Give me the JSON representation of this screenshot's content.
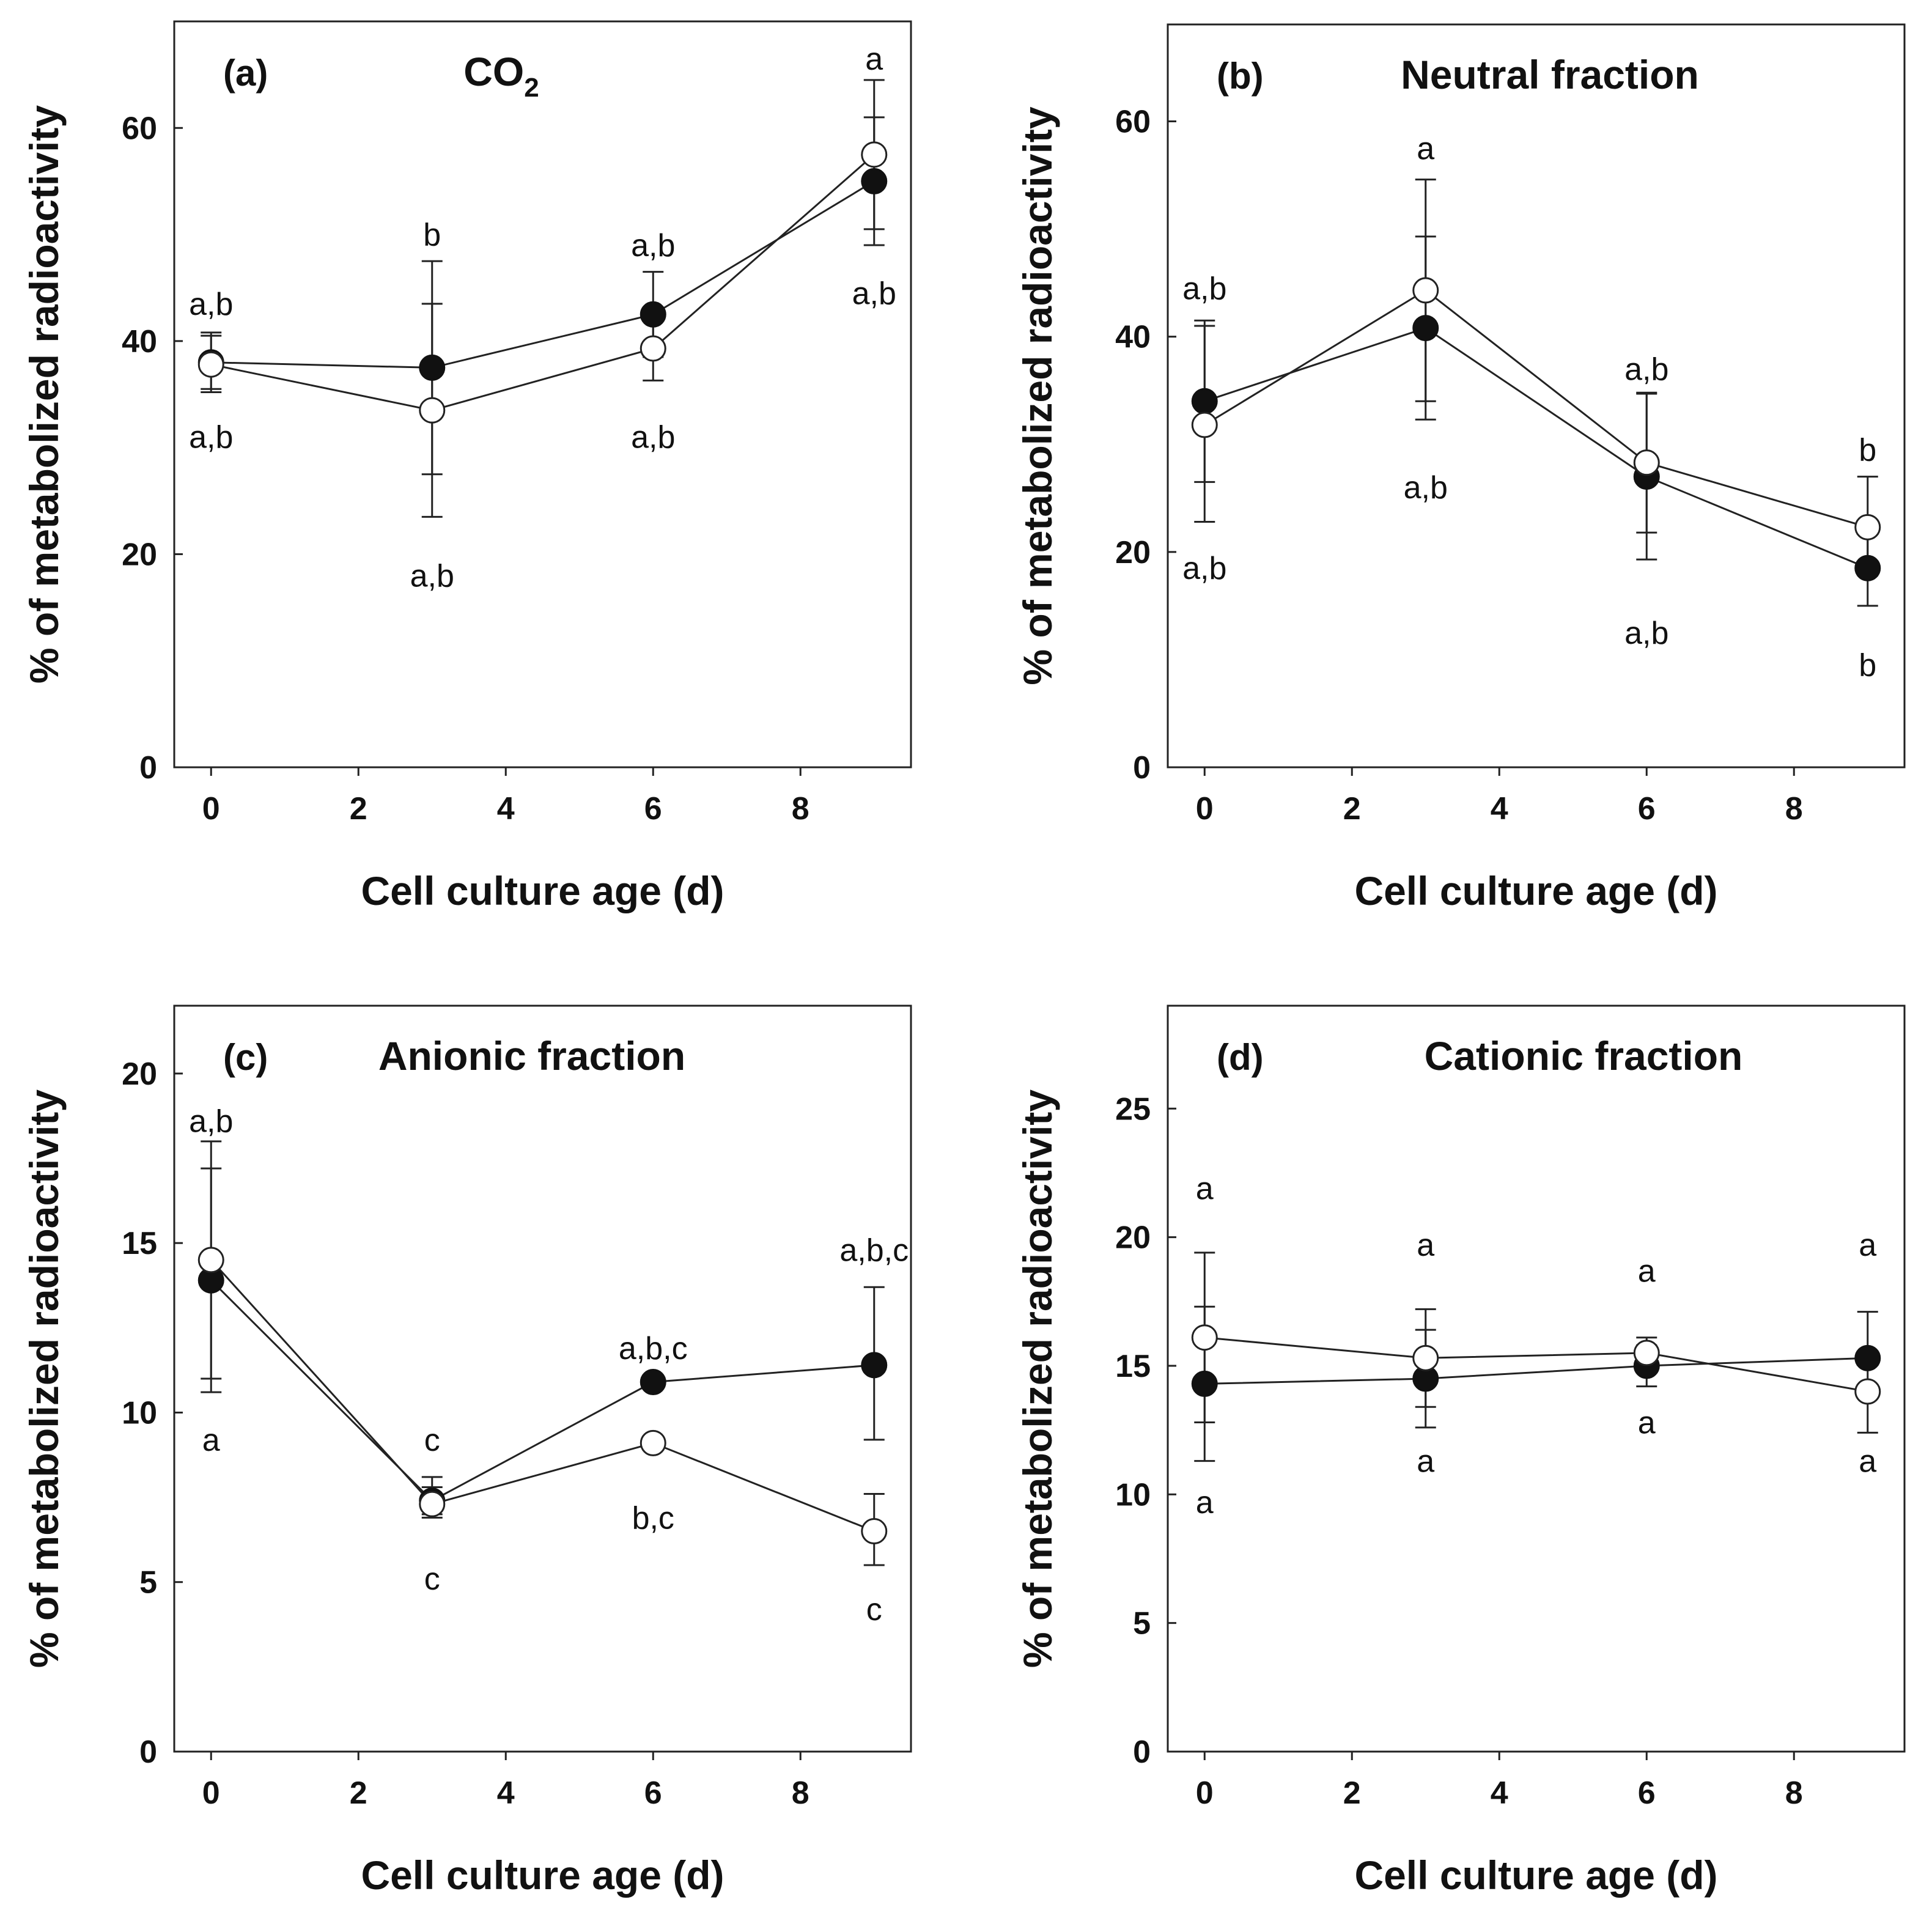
{
  "chart_data": [
    {
      "type": "line",
      "panel": "(a)",
      "title": "CO2",
      "title_main": "CO",
      "title_sub": "2",
      "xlabel": "Cell culture age (d)",
      "ylabel": "% of metabolized radioactivity",
      "xlim": [
        -0.5,
        9.5
      ],
      "ylim": [
        0,
        70
      ],
      "xticks": [
        0,
        2,
        4,
        6,
        8
      ],
      "yticks": [
        0,
        20,
        40,
        60
      ],
      "x": [
        0,
        3,
        6,
        9
      ],
      "series": [
        {
          "name": "filled",
          "marker": "filled",
          "values": [
            38,
            37.5,
            42.5,
            55
          ],
          "err_low": [
            35.5,
            27.5,
            38.5,
            49
          ],
          "err_high": [
            40.5,
            47.5,
            46.5,
            61
          ]
        },
        {
          "name": "open",
          "marker": "open",
          "values": [
            37.8,
            33.5,
            39.3,
            57.5
          ],
          "err_low": [
            35.2,
            23.5,
            36.3,
            50.5
          ],
          "err_high": [
            40.8,
            43.5,
            42.3,
            64.5
          ]
        }
      ],
      "annotations": [
        {
          "x": 0,
          "y": 43.5,
          "text": "a,b"
        },
        {
          "x": 0,
          "y": 31,
          "text": "a,b"
        },
        {
          "x": 3,
          "y": 50,
          "text": "b"
        },
        {
          "x": 3,
          "y": 18,
          "text": "a,b"
        },
        {
          "x": 6,
          "y": 49,
          "text": "a,b"
        },
        {
          "x": 6,
          "y": 31,
          "text": "a,b"
        },
        {
          "x": 9,
          "y": 66.5,
          "text": "a"
        },
        {
          "x": 9,
          "y": 44.5,
          "text": "a,b"
        }
      ]
    },
    {
      "type": "line",
      "panel": "(b)",
      "title": "Neutral fraction",
      "xlabel": "Cell culture age (d)",
      "ylabel": "% of metabolized radioactivity",
      "xlim": [
        -0.5,
        9.5
      ],
      "ylim": [
        0,
        69
      ],
      "xticks": [
        0,
        2,
        4,
        6,
        8
      ],
      "yticks": [
        0,
        20,
        40,
        60
      ],
      "x": [
        0,
        3,
        6,
        9
      ],
      "series": [
        {
          "name": "filled",
          "marker": "filled",
          "values": [
            34,
            40.8,
            27,
            18.5
          ],
          "err_low": [
            26.5,
            32.3,
            19.3,
            15
          ],
          "err_high": [
            41.5,
            49.3,
            34.7,
            22
          ]
        },
        {
          "name": "open",
          "marker": "open",
          "values": [
            31.8,
            44.3,
            28.3,
            22.3
          ],
          "err_low": [
            22.8,
            34,
            21.8,
            17.8
          ],
          "err_high": [
            41,
            54.6,
            34.8,
            27
          ]
        }
      ],
      "annotations": [
        {
          "x": 0,
          "y": 44.5,
          "text": "a,b"
        },
        {
          "x": 0,
          "y": 18.5,
          "text": "a,b"
        },
        {
          "x": 3,
          "y": 57.5,
          "text": "a"
        },
        {
          "x": 3,
          "y": 26,
          "text": "a,b"
        },
        {
          "x": 6,
          "y": 37,
          "text": "a,b"
        },
        {
          "x": 6,
          "y": 12.5,
          "text": "a,b"
        },
        {
          "x": 9,
          "y": 29.5,
          "text": "b"
        },
        {
          "x": 9,
          "y": 9.5,
          "text": "b"
        }
      ]
    },
    {
      "type": "line",
      "panel": "(c)",
      "title": "Anionic fraction",
      "xlabel": "Cell culture age (d)",
      "ylabel": "% of metabolized radioactivity",
      "xlim": [
        -0.5,
        9.5
      ],
      "ylim": [
        0,
        22
      ],
      "xticks": [
        0,
        2,
        4,
        6,
        8
      ],
      "yticks": [
        0,
        5,
        10,
        15,
        20
      ],
      "x": [
        0,
        3,
        6,
        9
      ],
      "series": [
        {
          "name": "filled",
          "marker": "filled",
          "values": [
            13.9,
            7.4,
            10.9,
            11.4
          ],
          "err_low": [
            10.6,
            7,
            10.9,
            9.2
          ],
          "err_high": [
            17.2,
            7.8,
            10.9,
            13.7
          ]
        },
        {
          "name": "open",
          "marker": "open",
          "values": [
            14.5,
            7.3,
            9.1,
            6.5
          ],
          "err_low": [
            11,
            6.9,
            9.1,
            5.5
          ],
          "err_high": [
            18,
            8.1,
            9.1,
            7.6
          ]
        }
      ],
      "annotations": [
        {
          "x": 0,
          "y": 18.6,
          "text": "a,b"
        },
        {
          "x": 0,
          "y": 9.2,
          "text": "a"
        },
        {
          "x": 3,
          "y": 9.2,
          "text": "c"
        },
        {
          "x": 3,
          "y": 5.1,
          "text": "c"
        },
        {
          "x": 6,
          "y": 11.9,
          "text": "a,b,c"
        },
        {
          "x": 6,
          "y": 6.9,
          "text": "b,c"
        },
        {
          "x": 9,
          "y": 14.8,
          "text": "a,b,c"
        },
        {
          "x": 9,
          "y": 4.2,
          "text": "c"
        }
      ]
    },
    {
      "type": "line",
      "panel": "(d)",
      "title": "Cationic fraction",
      "xlabel": "Cell culture age (d)",
      "ylabel": "% of metabolized radioactivity",
      "xlim": [
        -0.5,
        9.5
      ],
      "ylim": [
        0,
        29
      ],
      "xticks": [
        0,
        2,
        4,
        6,
        8
      ],
      "yticks": [
        0,
        5,
        10,
        15,
        20,
        25
      ],
      "x": [
        0,
        3,
        6,
        9
      ],
      "series": [
        {
          "name": "filled",
          "marker": "filled",
          "values": [
            14.3,
            14.5,
            15,
            15.3
          ],
          "err_low": [
            11.3,
            12.6,
            14.2,
            15.3
          ],
          "err_high": [
            17.3,
            16.4,
            15.8,
            15.3
          ]
        },
        {
          "name": "open",
          "marker": "open",
          "values": [
            16.1,
            15.3,
            15.5,
            14
          ],
          "err_low": [
            12.8,
            13.4,
            15.5,
            12.4
          ],
          "err_high": [
            19.4,
            17.2,
            16.1,
            17.1
          ]
        }
      ],
      "annotations": [
        {
          "x": 0,
          "y": 21.9,
          "text": "a"
        },
        {
          "x": 0,
          "y": 9.7,
          "text": "a"
        },
        {
          "x": 3,
          "y": 19.7,
          "text": "a"
        },
        {
          "x": 3,
          "y": 11.3,
          "text": "a"
        },
        {
          "x": 6,
          "y": 18.7,
          "text": "a"
        },
        {
          "x": 6,
          "y": 12.8,
          "text": "a"
        },
        {
          "x": 9,
          "y": 19.7,
          "text": "a"
        },
        {
          "x": 9,
          "y": 11.3,
          "text": "a"
        }
      ]
    }
  ]
}
